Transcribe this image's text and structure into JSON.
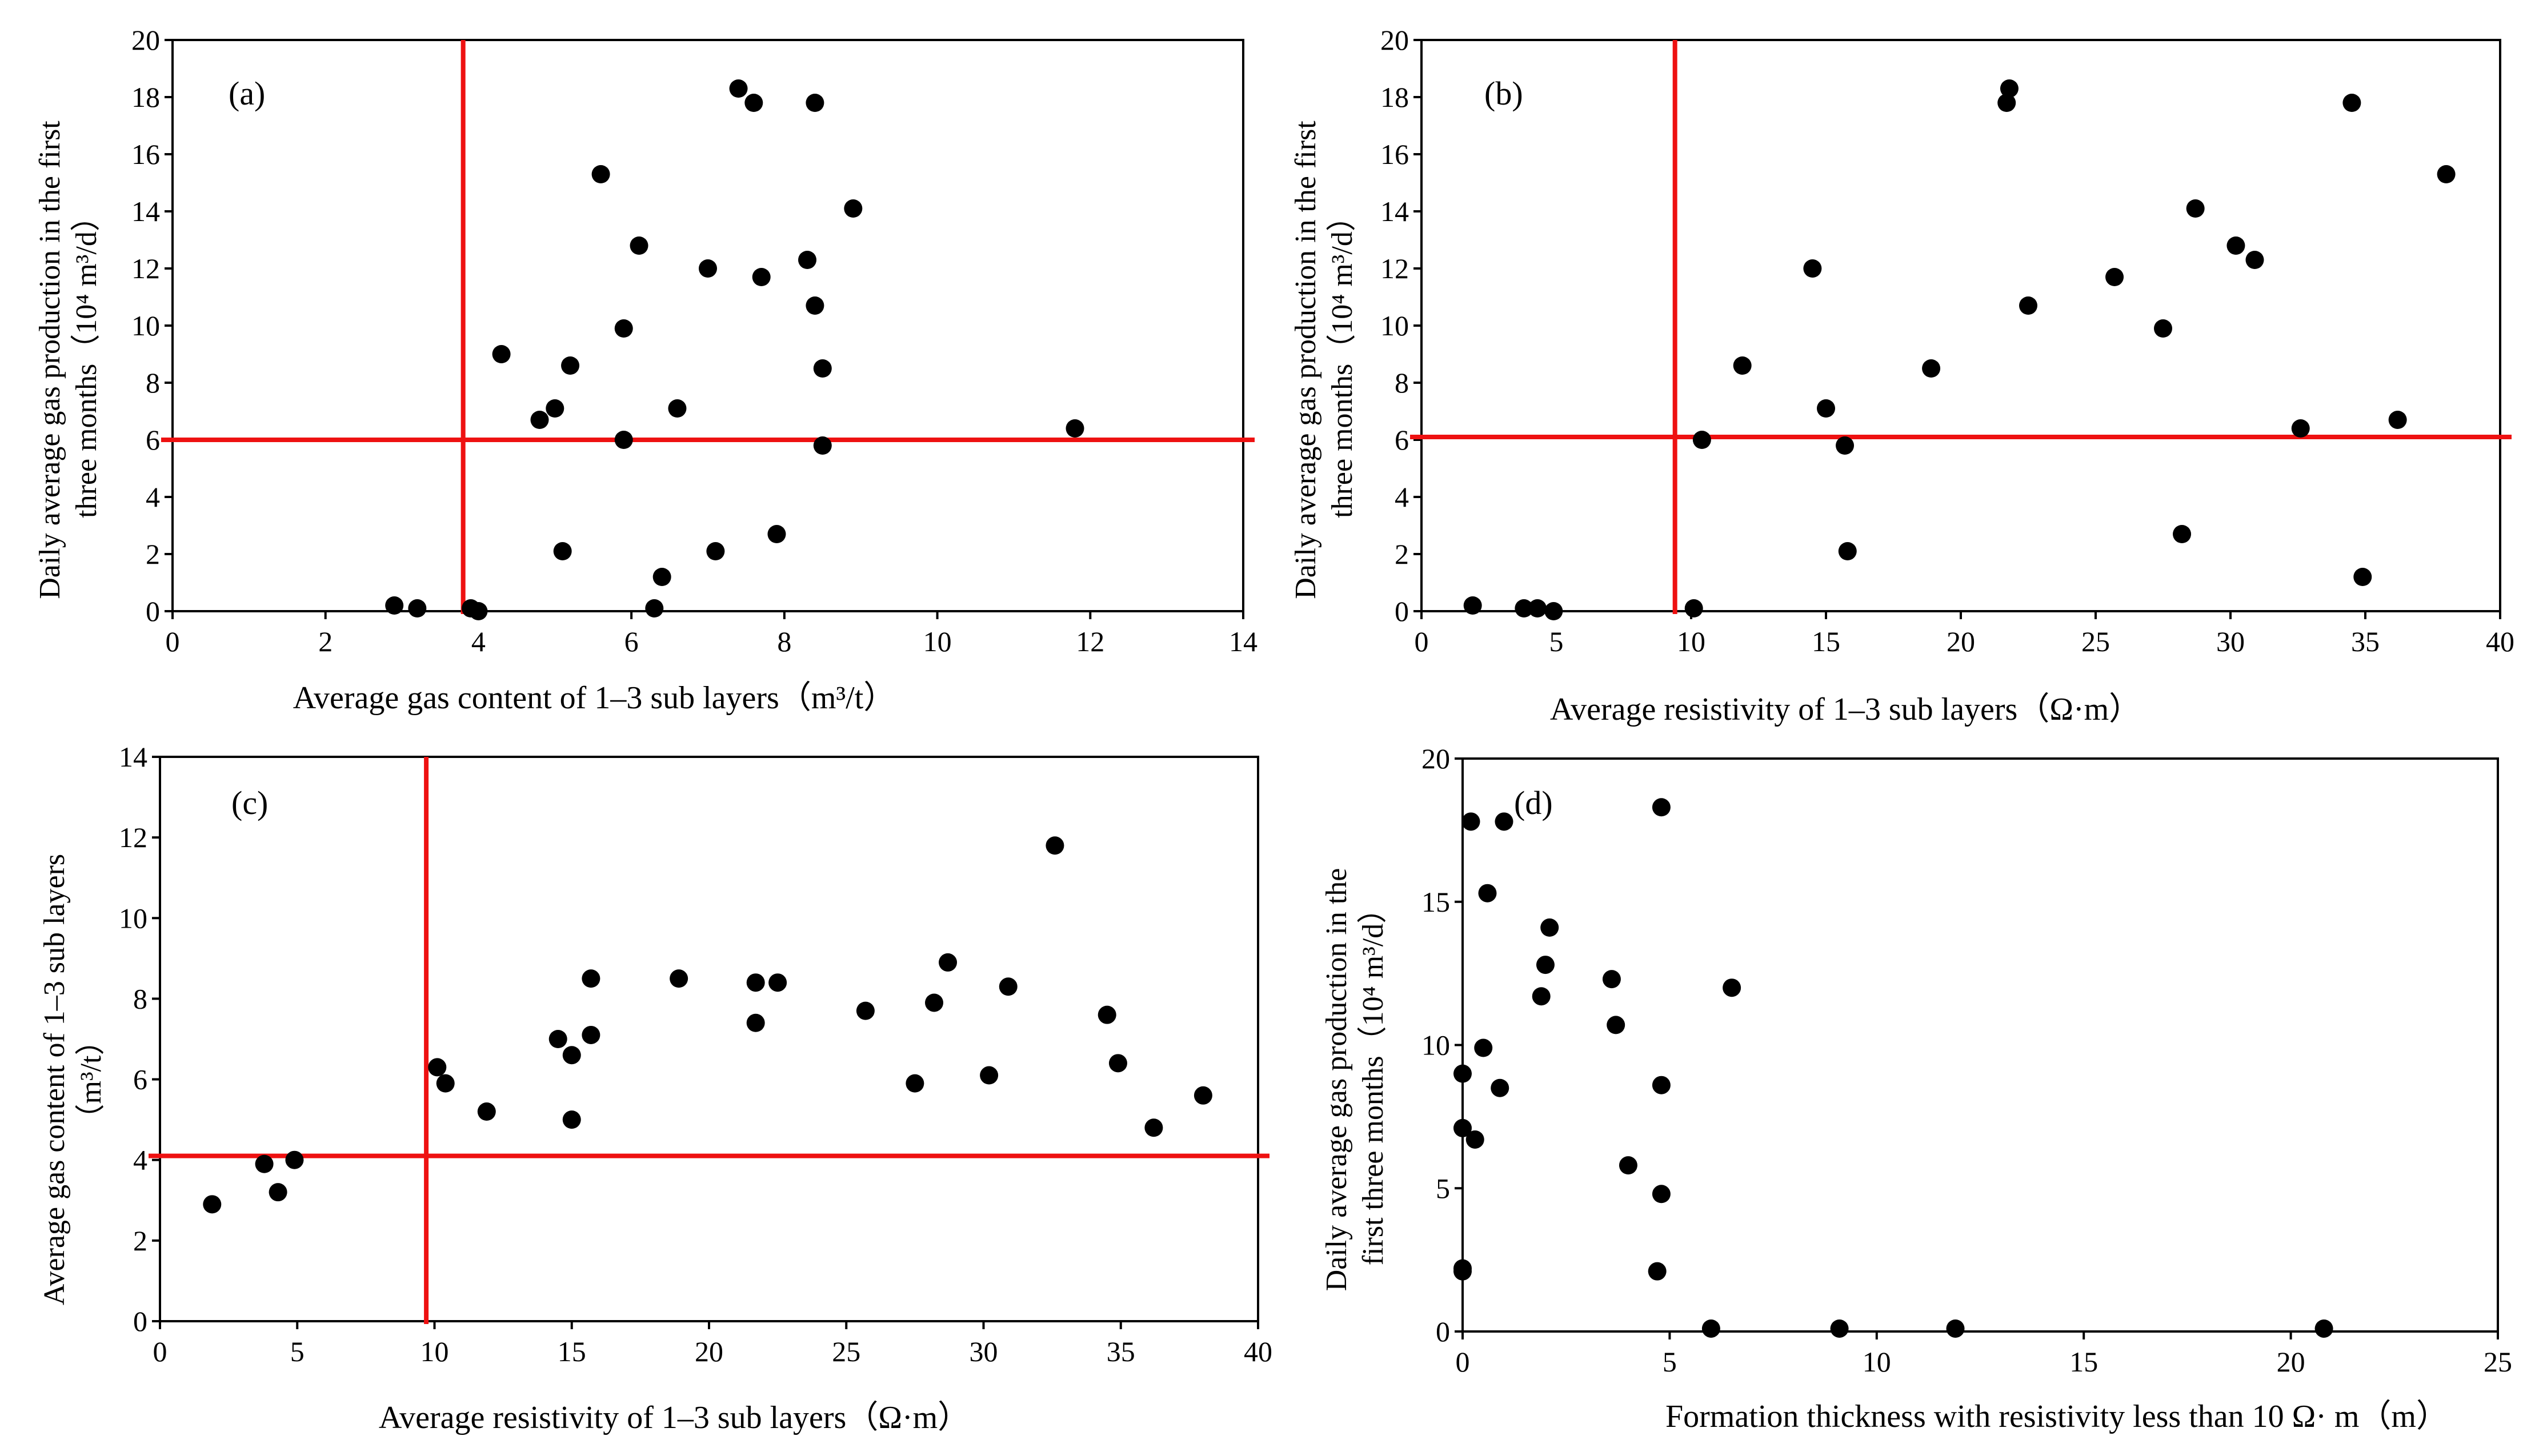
{
  "colors": {
    "threshold": "#ee1111",
    "point": "#000000",
    "axis": "#000000"
  },
  "chart_data": [
    {
      "id": "a",
      "type": "scatter",
      "panel_label": "(a)",
      "xlabel": "Average gas content of 1–3 sub layers（m³/t）",
      "ylabel_lines": [
        "Daily average gas production in the first",
        "three months（10⁴ m³/d）"
      ],
      "xlim": [
        0,
        14
      ],
      "ylim": [
        0,
        20
      ],
      "xticks": [
        0,
        2,
        4,
        6,
        8,
        10,
        12,
        14
      ],
      "yticks": [
        0,
        2,
        4,
        6,
        8,
        10,
        12,
        14,
        16,
        18,
        20
      ],
      "threshold_x": 3.8,
      "threshold_y": 6.0,
      "points": [
        [
          2.9,
          0.2
        ],
        [
          3.2,
          0.1
        ],
        [
          3.9,
          0.1
        ],
        [
          4.0,
          0.0
        ],
        [
          4.3,
          9.0
        ],
        [
          4.8,
          6.7
        ],
        [
          5.0,
          7.1
        ],
        [
          5.1,
          2.1
        ],
        [
          5.2,
          8.6
        ],
        [
          5.6,
          15.3
        ],
        [
          5.9,
          9.9
        ],
        [
          5.9,
          6.0
        ],
        [
          6.1,
          12.8
        ],
        [
          6.3,
          0.1
        ],
        [
          6.4,
          1.2
        ],
        [
          6.6,
          7.1
        ],
        [
          7.0,
          12.0
        ],
        [
          7.1,
          2.1
        ],
        [
          7.4,
          18.3
        ],
        [
          7.6,
          17.8
        ],
        [
          7.7,
          11.7
        ],
        [
          7.9,
          2.7
        ],
        [
          8.3,
          12.3
        ],
        [
          8.4,
          17.8
        ],
        [
          8.4,
          10.7
        ],
        [
          8.5,
          8.5
        ],
        [
          8.5,
          5.8
        ],
        [
          8.9,
          14.1
        ],
        [
          11.8,
          6.4
        ]
      ]
    },
    {
      "id": "b",
      "type": "scatter",
      "panel_label": "(b)",
      "xlabel": "Average resistivity of   1–3 sub layers（Ω·m）",
      "ylabel_lines": [
        "Daily average gas production in the first",
        "three months（10⁴ m³/d）"
      ],
      "xlim": [
        0,
        40
      ],
      "ylim": [
        0,
        20
      ],
      "xticks": [
        0,
        5,
        10,
        15,
        20,
        25,
        30,
        35,
        40
      ],
      "yticks": [
        0,
        2,
        4,
        6,
        8,
        10,
        12,
        14,
        16,
        18,
        20
      ],
      "threshold_x": 9.4,
      "threshold_y": 6.1,
      "points": [
        [
          1.9,
          0.2
        ],
        [
          3.8,
          0.1
        ],
        [
          4.3,
          0.1
        ],
        [
          4.9,
          0.0
        ],
        [
          10.1,
          0.1
        ],
        [
          10.4,
          6.0
        ],
        [
          11.9,
          8.6
        ],
        [
          14.5,
          12.0
        ],
        [
          15.0,
          7.1
        ],
        [
          15.7,
          5.8
        ],
        [
          15.8,
          2.1
        ],
        [
          18.9,
          8.5
        ],
        [
          21.7,
          17.8
        ],
        [
          21.8,
          18.3
        ],
        [
          22.5,
          10.7
        ],
        [
          25.7,
          11.7
        ],
        [
          27.5,
          9.9
        ],
        [
          28.2,
          2.7
        ],
        [
          28.7,
          14.1
        ],
        [
          30.2,
          12.8
        ],
        [
          30.9,
          12.3
        ],
        [
          32.6,
          6.4
        ],
        [
          34.5,
          17.8
        ],
        [
          34.9,
          1.2
        ],
        [
          36.2,
          6.7
        ],
        [
          38.0,
          15.3
        ]
      ]
    },
    {
      "id": "c",
      "type": "scatter",
      "panel_label": "(c)",
      "xlabel": "Average resistivity of  1–3 sub layers（Ω·m）",
      "ylabel_lines": [
        "Average gas content of  1–3 sub layers",
        "（m³/t）"
      ],
      "xlim": [
        0,
        40
      ],
      "ylim": [
        0,
        14
      ],
      "xticks": [
        0,
        5,
        10,
        15,
        20,
        25,
        30,
        35,
        40
      ],
      "yticks": [
        0,
        2,
        4,
        6,
        8,
        10,
        12,
        14
      ],
      "threshold_x": 9.7,
      "threshold_y": 4.1,
      "points": [
        [
          1.9,
          2.9
        ],
        [
          3.8,
          3.9
        ],
        [
          4.3,
          3.2
        ],
        [
          4.9,
          4.0
        ],
        [
          10.1,
          6.3
        ],
        [
          10.4,
          5.9
        ],
        [
          11.9,
          5.2
        ],
        [
          14.5,
          7.0
        ],
        [
          15.0,
          6.6
        ],
        [
          15.0,
          5.0
        ],
        [
          15.7,
          8.5
        ],
        [
          15.7,
          7.1
        ],
        [
          18.9,
          8.5
        ],
        [
          21.7,
          8.4
        ],
        [
          21.7,
          7.4
        ],
        [
          22.5,
          8.4
        ],
        [
          25.7,
          7.7
        ],
        [
          27.5,
          5.9
        ],
        [
          28.2,
          7.9
        ],
        [
          28.7,
          8.9
        ],
        [
          30.2,
          6.1
        ],
        [
          30.9,
          8.3
        ],
        [
          32.6,
          11.8
        ],
        [
          34.5,
          7.6
        ],
        [
          34.9,
          6.4
        ],
        [
          36.2,
          4.8
        ],
        [
          38.0,
          5.6
        ]
      ]
    },
    {
      "id": "d",
      "type": "scatter",
      "panel_label": "(d)",
      "xlabel": "Formation thickness with resistivity less than 10 Ω· m（m）",
      "ylabel_lines": [
        "Daily average gas production in the",
        "first three months（10⁴ m³/d）"
      ],
      "xlim": [
        0,
        25
      ],
      "ylim": [
        0,
        20
      ],
      "xticks": [
        0,
        5,
        10,
        15,
        20,
        25
      ],
      "yticks": [
        0,
        5,
        10,
        15,
        20
      ],
      "points": [
        [
          0.0,
          9.0
        ],
        [
          0.0,
          7.1
        ],
        [
          0.0,
          2.2
        ],
        [
          0.0,
          2.1
        ],
        [
          0.2,
          17.8
        ],
        [
          0.3,
          6.7
        ],
        [
          0.5,
          9.9
        ],
        [
          0.6,
          15.3
        ],
        [
          0.9,
          8.5
        ],
        [
          1.0,
          17.8
        ],
        [
          1.9,
          11.7
        ],
        [
          2.0,
          12.8
        ],
        [
          2.1,
          14.1
        ],
        [
          3.6,
          12.3
        ],
        [
          3.7,
          10.7
        ],
        [
          4.0,
          5.8
        ],
        [
          4.7,
          2.1
        ],
        [
          4.8,
          4.8
        ],
        [
          4.8,
          8.6
        ],
        [
          4.8,
          18.3
        ],
        [
          6.0,
          0.1
        ],
        [
          6.5,
          12.0
        ],
        [
          9.1,
          0.1
        ],
        [
          11.9,
          0.1
        ],
        [
          20.8,
          0.1
        ]
      ]
    }
  ]
}
